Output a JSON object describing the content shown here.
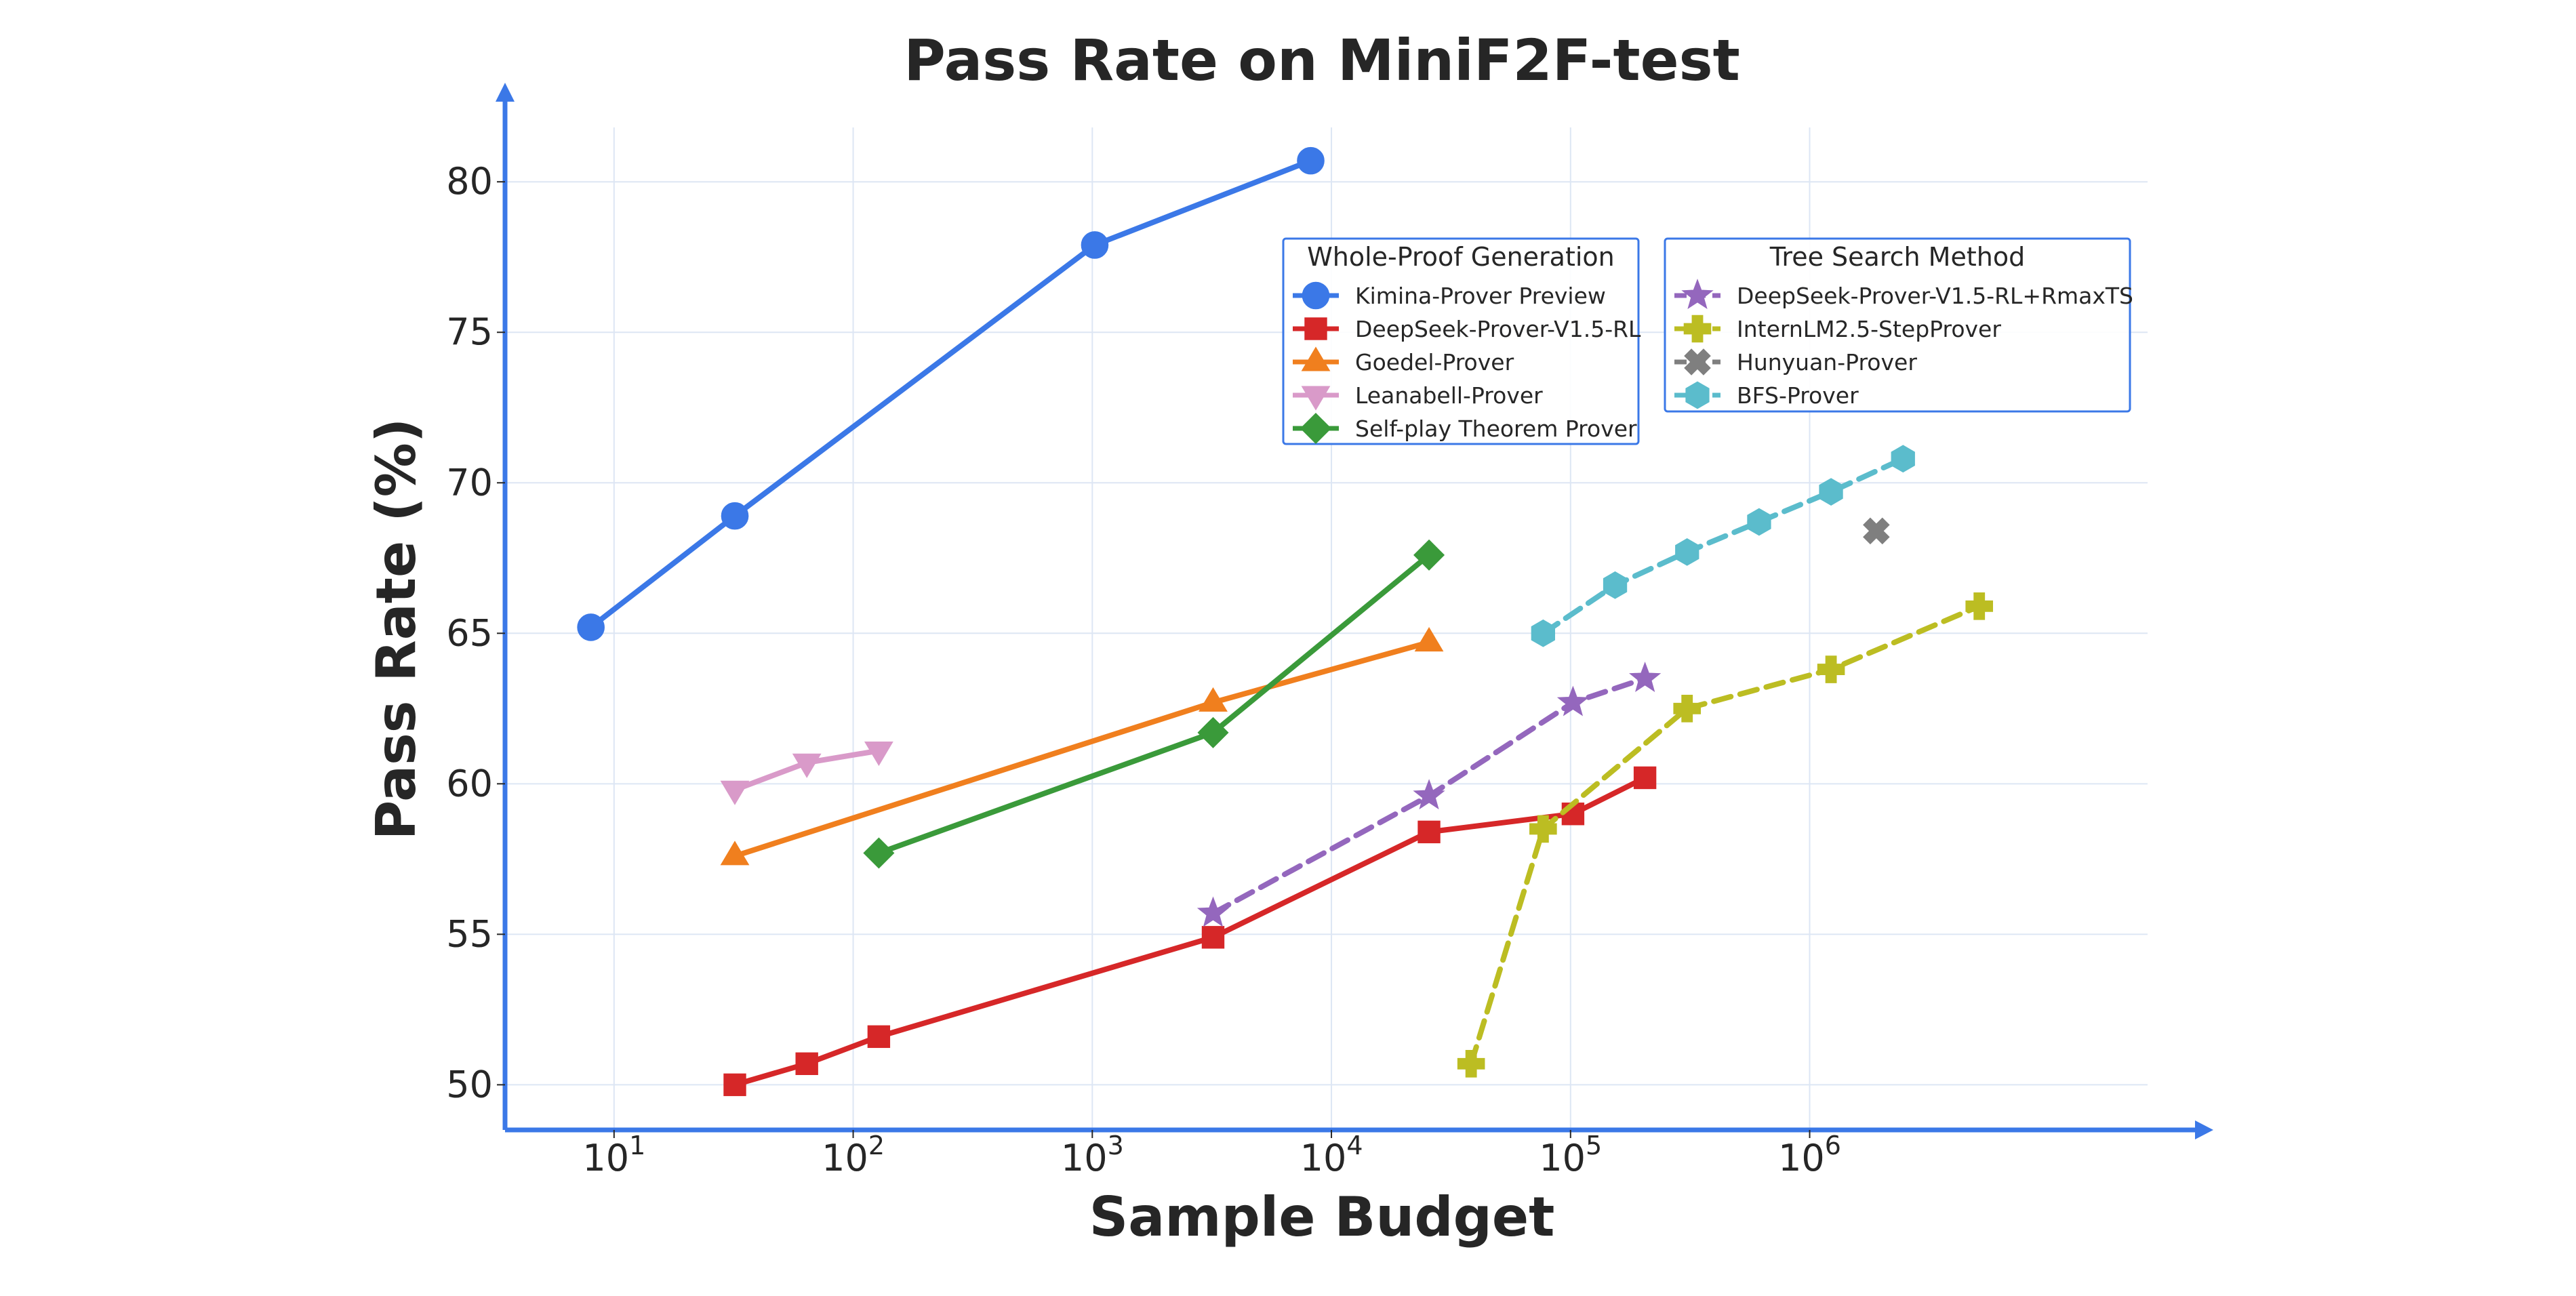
{
  "chart_data": {
    "type": "line",
    "title": "Pass Rate on MiniF2F-test",
    "xlabel": "Sample Budget",
    "ylabel": "Pass Rate (%)",
    "x_scale": "log10",
    "xlim": [
      3.5,
      28000000
    ],
    "ylim": [
      48.5,
      83
    ],
    "x_ticks": [
      {
        "value": 10,
        "base": "10",
        "exp": "1"
      },
      {
        "value": 100,
        "base": "10",
        "exp": "2"
      },
      {
        "value": 1000,
        "base": "10",
        "exp": "3"
      },
      {
        "value": 10000,
        "base": "10",
        "exp": "4"
      },
      {
        "value": 100000,
        "base": "10",
        "exp": "5"
      },
      {
        "value": 1000000,
        "base": "10",
        "exp": "6"
      }
    ],
    "y_ticks": [
      {
        "value": 50,
        "label": "50"
      },
      {
        "value": 55,
        "label": "55"
      },
      {
        "value": 60,
        "label": "60"
      },
      {
        "value": 65,
        "label": "65"
      },
      {
        "value": 70,
        "label": "70"
      },
      {
        "value": 75,
        "label": "75"
      },
      {
        "value": 80,
        "label": "80"
      }
    ],
    "grid": true,
    "axis_color": "#3b78e7",
    "grid_color": "#dde6f4",
    "legends": [
      {
        "title": "Whole-Proof Generation",
        "position": "upper-center",
        "series_indices": [
          0,
          1,
          2,
          3,
          4
        ]
      },
      {
        "title": "Tree Search Method",
        "position": "upper-right",
        "series_indices": [
          5,
          6,
          7,
          8
        ]
      }
    ],
    "series": [
      {
        "name": "Kimina-Prover Preview",
        "color": "#3b78e7",
        "marker": "circle",
        "line": "solid",
        "points": [
          [
            8,
            65.2
          ],
          [
            32,
            68.9
          ],
          [
            1024,
            77.9
          ],
          [
            8192,
            80.7
          ]
        ]
      },
      {
        "name": "DeepSeek-Prover-V1.5-RL",
        "color": "#d62728",
        "marker": "square",
        "line": "solid",
        "points": [
          [
            32,
            50.0
          ],
          [
            64,
            50.7
          ],
          [
            128,
            51.6
          ],
          [
            3200,
            54.9
          ],
          [
            25600,
            58.4
          ],
          [
            102400,
            59.0
          ],
          [
            204800,
            60.2
          ]
        ]
      },
      {
        "name": "Goedel-Prover",
        "color": "#f07f1e",
        "marker": "triangle-up",
        "line": "solid",
        "points": [
          [
            32,
            57.6
          ],
          [
            3200,
            62.7
          ],
          [
            25600,
            64.7
          ]
        ]
      },
      {
        "name": "Leanabell-Prover",
        "color": "#d99ac9",
        "marker": "triangle-down",
        "line": "solid",
        "points": [
          [
            32,
            59.8
          ],
          [
            64,
            60.7
          ],
          [
            128,
            61.1
          ]
        ]
      },
      {
        "name": "Self-play Theorem Prover",
        "color": "#3a9a3a",
        "marker": "diamond",
        "line": "solid",
        "points": [
          [
            128,
            57.7
          ],
          [
            3200,
            61.7
          ],
          [
            25600,
            67.6
          ]
        ]
      },
      {
        "name": "DeepSeek-Prover-V1.5-RL+RmaxTS",
        "color": "#9467bd",
        "marker": "star",
        "line": "dashed",
        "points": [
          [
            3200,
            55.7
          ],
          [
            25600,
            59.6
          ],
          [
            102400,
            62.7
          ],
          [
            204800,
            63.5
          ]
        ]
      },
      {
        "name": "InternLM2.5-StepProver",
        "color": "#bcbd22",
        "marker": "plus",
        "line": "dashed",
        "points": [
          [
            38400,
            50.7
          ],
          [
            76800,
            58.5
          ],
          [
            307200,
            62.5
          ],
          [
            1228800,
            63.8
          ],
          [
            5120000,
            65.9
          ]
        ]
      },
      {
        "name": "Hunyuan-Prover",
        "color": "#7f7f7f",
        "marker": "x",
        "line": "dashed",
        "points": [
          [
            1900000,
            68.4
          ]
        ]
      },
      {
        "name": "BFS-Prover",
        "color": "#5bbccc",
        "marker": "hexagon",
        "line": "dashed",
        "points": [
          [
            76800,
            65.0
          ],
          [
            153600,
            66.6
          ],
          [
            307200,
            67.7
          ],
          [
            614400,
            68.7
          ],
          [
            1228800,
            69.7
          ],
          [
            2457600,
            70.8
          ]
        ]
      }
    ]
  }
}
